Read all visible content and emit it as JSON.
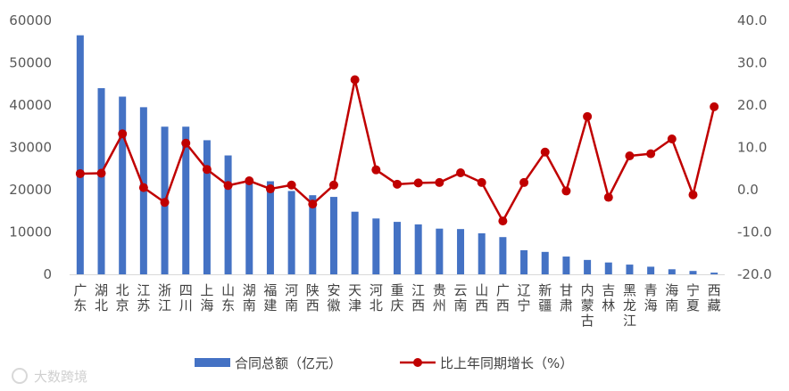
{
  "chart_data": {
    "type": "bar-line-combo",
    "categories": [
      "广东",
      "湖北",
      "北京",
      "江苏",
      "浙江",
      "四川",
      "上海",
      "山东",
      "湖南",
      "福建",
      "河南",
      "陕西",
      "安徽",
      "天津",
      "河北",
      "重庆",
      "江西",
      "贵州",
      "云南",
      "山西",
      "广西",
      "辽宁",
      "新疆",
      "甘肃",
      "内蒙古",
      "吉林",
      "黑龙江",
      "青海",
      "海南",
      "宁夏",
      "西藏"
    ],
    "series": [
      {
        "name": "合同总额（亿元）",
        "type": "bar",
        "axis": "left",
        "color": "#4472C4",
        "values": [
          56500,
          44000,
          42000,
          39500,
          34900,
          34900,
          31700,
          28100,
          22700,
          22000,
          19700,
          18700,
          18300,
          14800,
          13200,
          12400,
          11800,
          10800,
          10700,
          9700,
          8800,
          5700,
          5300,
          4200,
          3400,
          2800,
          2300,
          1800,
          1200,
          800,
          400
        ]
      },
      {
        "name": "比上年同期增长（%）",
        "type": "line",
        "axis": "right",
        "color": "#C00000",
        "values": [
          3.8,
          3.9,
          13.2,
          0.5,
          -3.0,
          11.0,
          4.8,
          1.0,
          2.1,
          0.2,
          1.1,
          -3.4,
          1.1,
          26.0,
          4.7,
          1.3,
          1.6,
          1.7,
          4.0,
          1.7,
          -7.4,
          1.7,
          8.9,
          -0.3,
          17.3,
          -1.8,
          8.0,
          8.5,
          12.0,
          -1.2,
          19.6
        ]
      }
    ],
    "y_left": {
      "ylim": [
        0,
        60000
      ],
      "ticks": [
        "0",
        "10000",
        "20000",
        "30000",
        "40000",
        "50000",
        "60000"
      ]
    },
    "y_right": {
      "ylim": [
        -20,
        40
      ],
      "ticks": [
        "-20.0",
        "-10.0",
        "0.0",
        "10.0",
        "20.0",
        "30.0",
        "40.0"
      ]
    },
    "grid": false,
    "legend": "bottom"
  },
  "watermark": "大数跨境"
}
